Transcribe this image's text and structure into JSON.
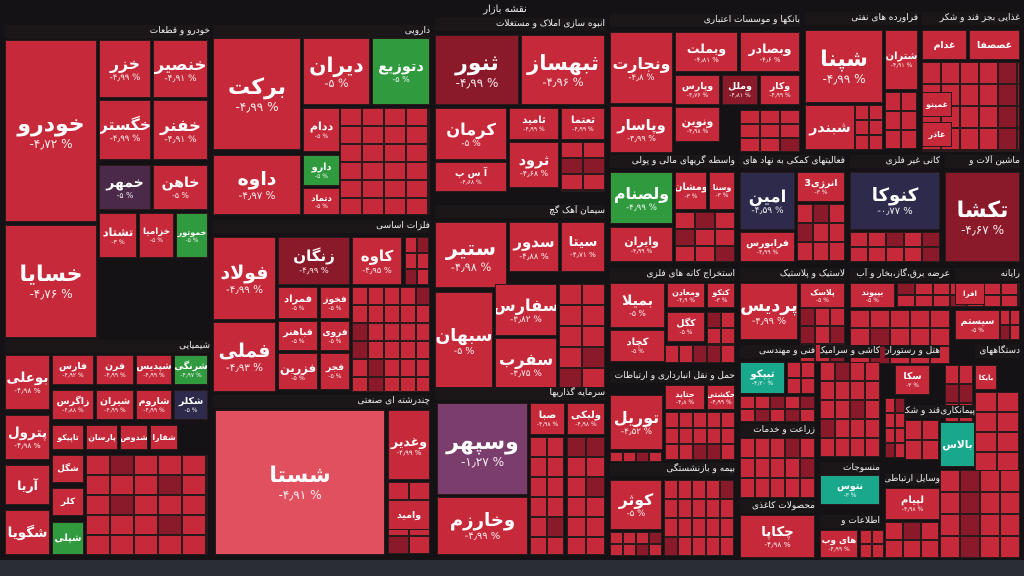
{
  "title": "نقشه بازار",
  "sectors": [
    {
      "name": "خودرو و قطعات",
      "tiles": [
        {
          "name": "خودرو",
          "change": "-۴٫۷۲ %"
        },
        {
          "name": "خسایا",
          "change": "-۴٫۷۶ %"
        },
        {
          "name": "خزر",
          "change": "-۴٫۹۹ %"
        },
        {
          "name": "خنصیر",
          "change": "-۴٫۹۱ %"
        },
        {
          "name": "خگستر",
          "change": "-۴٫۹۹ %"
        },
        {
          "name": "خفنر",
          "change": "-۴٫۹۱ %"
        },
        {
          "name": "خمهر",
          "change": "-۵ %"
        },
        {
          "name": "خاهن",
          "change": "-۵ %"
        },
        {
          "name": "تشتاد",
          "change": "-۳ %"
        },
        {
          "name": "خزامیا",
          "change": "-۵ %"
        },
        {
          "name": "خموتور",
          "change": "-۵ %"
        }
      ]
    },
    {
      "name": "دارویی",
      "tiles": [
        {
          "name": "برکت",
          "change": "-۴٫۹۹ %"
        },
        {
          "name": "دیران",
          "change": "-۵ %"
        },
        {
          "name": "دتوزیع",
          "change": "-۵ %"
        },
        {
          "name": "داوه",
          "change": "-۴٫۹۷ %"
        },
        {
          "name": "ددام",
          "change": "-۵ %"
        },
        {
          "name": "دارو",
          "change": "-۵ %"
        },
        {
          "name": "دتماد",
          "change": "-۵ %"
        }
      ]
    },
    {
      "name": "انبوه سازی املاک و مستغلات",
      "tiles": [
        {
          "name": "ثنور",
          "change": "-۴٫۹۹ %"
        },
        {
          "name": "ثبهساز",
          "change": "-۴٫۹۶ %"
        },
        {
          "name": "کرمان",
          "change": "-۵ %"
        },
        {
          "name": "ثامید",
          "change": "-۴٫۹۹ %"
        },
        {
          "name": "ثعتما",
          "change": "-۴٫۹۹ %"
        },
        {
          "name": "ثرود",
          "change": "-۴٫۶۸ %"
        },
        {
          "name": "آ س پ",
          "change": "-۴٫۶۸ %"
        }
      ]
    },
    {
      "name": "سیمان آهک گچ",
      "tiles": [
        {
          "name": "ستیر",
          "change": "-۴٫۹۸ %"
        },
        {
          "name": "سدور",
          "change": "-۴٫۸۸ %"
        },
        {
          "name": "سیتا",
          "change": "-۴٫۷۱ %"
        },
        {
          "name": "سبهان",
          "change": "-۵ %"
        },
        {
          "name": "سفارس",
          "change": "-۴٫۸۲ %"
        },
        {
          "name": "سفرب",
          "change": "-۴٫۷۵ %"
        }
      ]
    },
    {
      "name": "فلزات اساسی",
      "tiles": [
        {
          "name": "فولاد",
          "change": "-۴٫۹۹ %"
        },
        {
          "name": "فملی",
          "change": "-۴٫۹۳ %"
        },
        {
          "name": "زنگان",
          "change": "-۴٫۹۹ %"
        },
        {
          "name": "کاوه",
          "change": "-۴٫۹۵ %"
        },
        {
          "name": "فمراد",
          "change": "-۵ %"
        },
        {
          "name": "فخوز",
          "change": "-۵ %"
        },
        {
          "name": "فباهنر",
          "change": "-۵ %"
        },
        {
          "name": "فروی",
          "change": "-۵ %"
        },
        {
          "name": "فزرین",
          "change": "-۵ %"
        },
        {
          "name": "فجر",
          "change": "-۵ %"
        }
      ]
    },
    {
      "name": "شیمیایی",
      "tiles": [
        {
          "name": "بوعلی",
          "change": "-۴٫۹۸ %"
        },
        {
          "name": "فارس",
          "change": "-۴٫۹۲ %"
        },
        {
          "name": "فرن",
          "change": "-۴٫۹۹ %"
        },
        {
          "name": "شپدیس",
          "change": "-۴٫۹۹ %"
        },
        {
          "name": "شرنگی",
          "change": "-۴٫۹۷ %"
        },
        {
          "name": "زاگرس",
          "change": "-۴٫۸۸ %"
        },
        {
          "name": "شیران",
          "change": "-۴٫۹۹ %"
        },
        {
          "name": "شاروم",
          "change": "-۴٫۹۹ %"
        },
        {
          "name": "شکلر",
          "change": "-۵ %"
        },
        {
          "name": "پترول",
          "change": "-۴٫۹۸ %"
        },
        {
          "name": "تاپیکو"
        },
        {
          "name": "پارسان"
        },
        {
          "name": "شدوص"
        },
        {
          "name": "شفارا"
        },
        {
          "name": "شگل"
        },
        {
          "name": "کلر"
        },
        {
          "name": "شپلی"
        },
        {
          "name": "آریا"
        },
        {
          "name": "شگویا"
        }
      ]
    },
    {
      "name": "چندرشته ای صنعتی",
      "tiles": [
        {
          "name": "شستا",
          "change": "-۴٫۹۱ %"
        },
        {
          "name": "وغدیر",
          "change": "-۴٫۹۹ %"
        },
        {
          "name": "وامید"
        }
      ]
    },
    {
      "name": "سرمایه گذاریها",
      "tiles": [
        {
          "name": "وسپهر",
          "change": "-۱٫۲۷ %"
        },
        {
          "name": "وخارزم",
          "change": "-۴٫۹۹ %"
        },
        {
          "name": "صبا",
          "change": "-۴٫۹۸ %"
        },
        {
          "name": "ولبکی",
          "change": "-۴٫۹۸ %"
        }
      ]
    },
    {
      "name": "بانکها و موسسات اعتباری",
      "tiles": [
        {
          "name": "ونجارت",
          "change": "-۴٫۸ %"
        },
        {
          "name": "وبملت",
          "change": "-۴٫۸۱ %"
        },
        {
          "name": "وبصادر",
          "change": "-۴٫۶ %"
        },
        {
          "name": "وپارس",
          "change": "-۴٫۷۶ %"
        },
        {
          "name": "وملل",
          "change": "-۴٫۸۱ %"
        },
        {
          "name": "وکار",
          "change": "-۴٫۹۹ %"
        },
        {
          "name": "وپاسار",
          "change": "-۴٫۹۹ %"
        },
        {
          "name": "ونوین",
          "change": "-۴٫۹۸ %"
        }
      ]
    },
    {
      "name": "فراورده های نفتی",
      "tiles": [
        {
          "name": "شپنا",
          "change": "-۴٫۹۹ %"
        },
        {
          "name": "شتران",
          "change": "-۴٫۹۱ %"
        },
        {
          "name": "شبندر"
        }
      ]
    },
    {
      "name": "غذایی بجز قند و شکر",
      "tiles": [
        {
          "name": "غدام"
        },
        {
          "name": "غصصفا"
        },
        {
          "name": "غمینو"
        },
        {
          "name": "غاذر"
        }
      ]
    },
    {
      "name": "واسطه گریهای مالی و پولی",
      "tiles": [
        {
          "name": "ولصنام",
          "change": "-۴٫۹۹ %"
        },
        {
          "name": "ومشان",
          "change": "-۳ %"
        },
        {
          "name": "وسنا",
          "change": "-۳ %"
        },
        {
          "name": "وایران",
          "change": "-۴٫۹۹ %"
        }
      ]
    },
    {
      "name": "فعالیتهای کمکی به نهاد های مالی",
      "tiles": [
        {
          "name": "امین",
          "change": "-۴٫۵۹ %"
        },
        {
          "name": "انرژی3",
          "change": "-۳ %"
        },
        {
          "name": "فرابورس",
          "change": "-۴٫۹۹ %"
        }
      ]
    },
    {
      "name": "کانی غیر فلزی",
      "tiles": [
        {
          "name": "کنوکا",
          "change": "-۰٫۷۷ %"
        }
      ]
    },
    {
      "name": "ماشین آلات و",
      "tiles": [
        {
          "name": "تکشا",
          "change": "-۴٫۶۷ %"
        }
      ]
    },
    {
      "name": "استخراج کانه های فلزی",
      "tiles": [
        {
          "name": "بمیلا",
          "change": "-۵ %"
        },
        {
          "name": "ومعادن",
          "change": "-۴٫۹ %"
        },
        {
          "name": "کتکو",
          "change": "-۳ %"
        },
        {
          "name": "کگل",
          "change": "-۵ %"
        },
        {
          "name": "کچاد",
          "change": "-۵ %"
        }
      ]
    },
    {
      "name": "لاستیک و پلاستیک",
      "tiles": [
        {
          "name": "پردیس",
          "change": "-۴٫۹۹ %"
        },
        {
          "name": "پلاسک",
          "change": "-۵ %"
        }
      ]
    },
    {
      "name": "عرضه برق،گاز،بخار و آب",
      "tiles": [
        {
          "name": "بپیوند",
          "change": "-۵ %"
        }
      ]
    },
    {
      "name": "رایانه",
      "tiles": [
        {
          "name": "افرا"
        },
        {
          "name": "سیستم",
          "change": "-۵ %"
        }
      ]
    },
    {
      "name": "حمل و نقل انبارداری و ارتباطات",
      "tiles": [
        {
          "name": "حتاید",
          "change": "-۴٫۸ %"
        },
        {
          "name": "حکشتی",
          "change": "-۴٫۹۹ %"
        },
        {
          "name": "توریل",
          "change": "-۴٫۵۲ %"
        }
      ]
    },
    {
      "name": "فنی و مهندسی",
      "tiles": [
        {
          "name": "تیپکو",
          "change": "-۴٫۳۰ %"
        }
      ]
    },
    {
      "name": "زراعت و خدمات",
      "tiles": []
    },
    {
      "name": "بیمه و بازنشستگی",
      "tiles": [
        {
          "name": "کوثر",
          "change": "-۵ %"
        }
      ]
    },
    {
      "name": "محصولات کاغذی",
      "tiles": [
        {
          "name": "چکاپا",
          "change": "-۴٫۹۸ %"
        }
      ]
    },
    {
      "name": "کاشی و سرامیک",
      "tiles": []
    },
    {
      "name": "هتل و رستوران",
      "tiles": [
        {
          "name": "سکا",
          "change": "-۳ %"
        }
      ]
    },
    {
      "name": "دستگاههای",
      "tiles": [
        {
          "name": "بایکا"
        }
      ]
    },
    {
      "name": "منسوجات",
      "tiles": [
        {
          "name": "نتوس",
          "change": "-۳ %"
        }
      ]
    },
    {
      "name": "وسایل ارتباطی",
      "tiles": [
        {
          "name": "لپیام",
          "change": "-۴٫۹۸ %"
        }
      ]
    },
    {
      "name": "قند و شکر",
      "tiles": []
    },
    {
      "name": "پیمانکاری",
      "tiles": [
        {
          "name": "بالاس"
        }
      ]
    },
    {
      "name": "اطلاعات و",
      "tiles": [
        {
          "name": "های وب",
          "change": "-۴٫۹۹ %"
        }
      ]
    }
  ]
}
